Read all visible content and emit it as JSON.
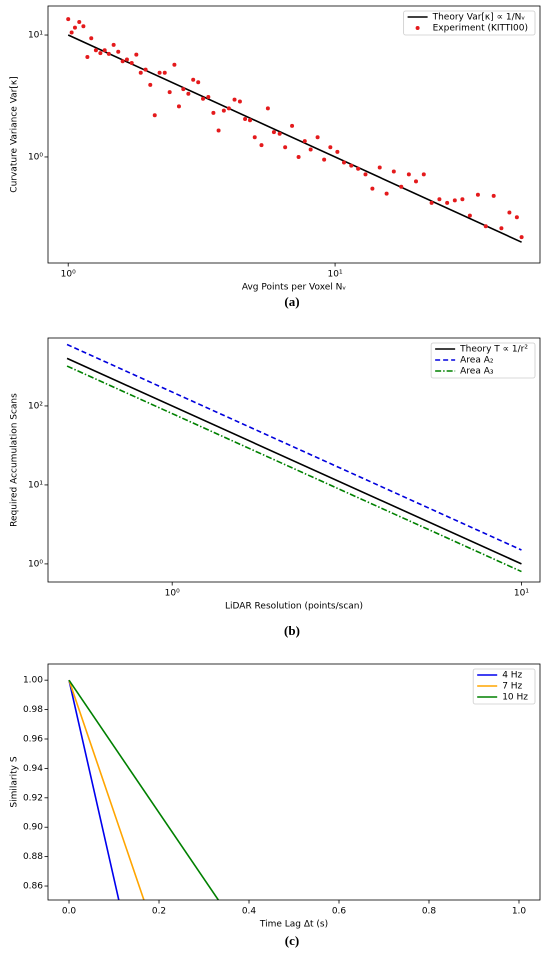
{
  "chart_data": [
    {
      "type": "line",
      "caption": "(a)",
      "xlabel": "Avg Points per Voxel Nᵥ",
      "ylabel": "Curvature Variance Var[κ]",
      "xscale": "log",
      "yscale": "log",
      "xlim": [
        0.84,
        58.6
      ],
      "ylim": [
        0.135,
        17.3
      ],
      "xticks": [
        {
          "value": 1,
          "label": "10⁰"
        },
        {
          "value": 10,
          "label": "10¹"
        }
      ],
      "yticks": [
        {
          "value": 1,
          "label": "10⁰"
        },
        {
          "value": 10,
          "label": "10¹"
        }
      ],
      "legend": "upper right",
      "series": [
        {
          "name": "Theory Var[κ] ∝ 1/Nᵥ",
          "color": "#000000",
          "style": "solid",
          "x": [
            1,
            50
          ],
          "values": [
            10,
            0.2
          ]
        },
        {
          "name": "Experiment (KITTI00)",
          "color": "#e41a1c",
          "style": "markers",
          "x": [
            1.0,
            1.03,
            1.06,
            1.1,
            1.14,
            1.18,
            1.22,
            1.27,
            1.32,
            1.37,
            1.42,
            1.48,
            1.54,
            1.6,
            1.66,
            1.73,
            1.8,
            1.87,
            1.95,
            2.03,
            2.11,
            2.2,
            2.3,
            2.4,
            2.5,
            2.6,
            2.7,
            2.82,
            2.94,
            3.07,
            3.2,
            3.35,
            3.5,
            3.66,
            3.83,
            4.0,
            4.2,
            4.4,
            4.6,
            4.8,
            5.0,
            5.3,
            5.6,
            5.9,
            6.2,
            6.5,
            6.9,
            7.3,
            7.7,
            8.1,
            8.6,
            9.1,
            9.6,
            10.2,
            10.8,
            11.5,
            12.2,
            13,
            13.8,
            14.7,
            15.6,
            16.6,
            17.7,
            18.9,
            20.1,
            21.5,
            23,
            24.6,
            26.3,
            28.1,
            30,
            32,
            34.3,
            36.7,
            39.3,
            42,
            45,
            48,
            50
          ],
          "values": [
            13.5,
            10.5,
            11.5,
            12.8,
            11.8,
            6.6,
            9.4,
            7.5,
            7.1,
            7.5,
            7.0,
            8.3,
            7.3,
            6.1,
            6.3,
            5.9,
            6.9,
            4.9,
            5.2,
            3.9,
            2.2,
            4.9,
            4.9,
            3.4,
            5.7,
            2.6,
            3.6,
            3.3,
            4.3,
            4.1,
            3.0,
            3.1,
            2.3,
            1.65,
            2.4,
            2.5,
            2.95,
            2.85,
            2.05,
            2.0,
            1.45,
            1.25,
            2.5,
            1.6,
            1.55,
            1.2,
            1.8,
            1.0,
            1.35,
            1.15,
            1.45,
            0.95,
            1.2,
            1.1,
            0.9,
            0.85,
            0.8,
            0.72,
            0.55,
            0.82,
            0.5,
            0.76,
            0.57,
            0.72,
            0.63,
            0.72,
            0.42,
            0.45,
            0.42,
            0.44,
            0.45,
            0.33,
            0.49,
            0.27,
            0.48,
            0.26,
            0.35,
            0.32,
            0.22
          ]
        }
      ]
    },
    {
      "type": "line",
      "caption": "(b)",
      "xlabel": "LiDAR Resolution (points/scan)",
      "ylabel": "Required Accumulation Scans",
      "xscale": "log",
      "yscale": "log",
      "xlim": [
        0.441,
        11.3
      ],
      "ylim": [
        0.59,
        725
      ],
      "xticks": [
        {
          "value": 1,
          "label": "10⁰"
        },
        {
          "value": 10,
          "label": "10¹"
        }
      ],
      "yticks": [
        {
          "value": 1,
          "label": "10⁰"
        },
        {
          "value": 10,
          "label": "10¹"
        },
        {
          "value": 100,
          "label": "10²"
        }
      ],
      "legend": "upper right",
      "series": [
        {
          "name": "Theory T ∝ 1/r²",
          "color": "#000000",
          "style": "solid",
          "x": [
            0.5,
            10
          ],
          "values": [
            400,
            1
          ]
        },
        {
          "name": "Area A₂",
          "color": "#0000dd",
          "style": "dashed",
          "x": [
            0.5,
            10
          ],
          "values": [
            600,
            1.5
          ]
        },
        {
          "name": "Area A₃",
          "color": "#008000",
          "style": "dashdot",
          "x": [
            0.5,
            10
          ],
          "values": [
            320,
            0.8
          ]
        }
      ]
    },
    {
      "type": "line",
      "caption": "(c)",
      "xlabel": "Time Lag Δt (s)",
      "ylabel": "Similarity S",
      "xlim": [
        -0.0467,
        1.0467
      ],
      "ylim": [
        0.8505,
        1.011
      ],
      "xticks": [
        {
          "value": 0,
          "label": "0.0"
        },
        0.2,
        0.4,
        0.6,
        0.8,
        {
          "value": 1,
          "label": "1.0"
        }
      ],
      "yticks": [
        0.86,
        0.88,
        {
          "value": 0.9,
          "label": "0.90"
        },
        0.92,
        0.94,
        0.96,
        0.98,
        {
          "value": 1,
          "label": "1.00"
        }
      ],
      "legend": "upper right",
      "series": [
        {
          "name": "4 Hz",
          "color": "#0000ee",
          "style": "solid",
          "x": [
            0,
            0.111
          ],
          "values": [
            1,
            0.85
          ]
        },
        {
          "name": "7 Hz",
          "color": "#ffa500",
          "style": "solid",
          "x": [
            0,
            0.167
          ],
          "values": [
            1,
            0.85
          ]
        },
        {
          "name": "10 Hz",
          "color": "#008000",
          "style": "solid",
          "x": [
            0,
            0.333
          ],
          "values": [
            1,
            0.85
          ]
        }
      ]
    }
  ]
}
